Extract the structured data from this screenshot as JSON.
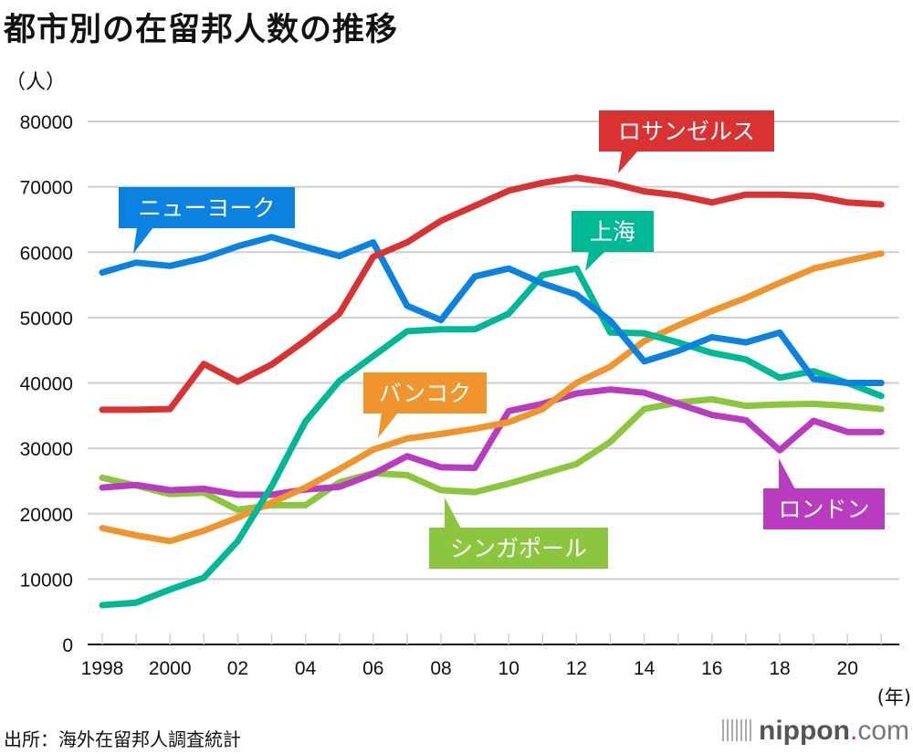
{
  "title": "都市別の在留邦人数の推移",
  "unit_label": "（人）",
  "year_unit": "(年)",
  "source": "出所：海外在留邦人調査統計",
  "logo": {
    "name": "nippon",
    "dot": ".",
    "suffix": "com"
  },
  "chart_data": {
    "type": "line",
    "title": "都市別の在留邦人数の推移",
    "xlabel": "(年)",
    "ylabel": "（人）",
    "ylim": [
      0,
      80000
    ],
    "yticks": [
      0,
      10000,
      20000,
      30000,
      40000,
      50000,
      60000,
      70000,
      80000
    ],
    "ytick_labels": [
      "0",
      "10000",
      "20000",
      "30000",
      "40000",
      "50000",
      "60000",
      "70000",
      "80000"
    ],
    "x": [
      1998,
      1999,
      2000,
      2001,
      2002,
      2003,
      2004,
      2005,
      2006,
      2007,
      2008,
      2009,
      2010,
      2011,
      2012,
      2013,
      2014,
      2015,
      2016,
      2017,
      2018,
      2019,
      2020,
      2021
    ],
    "xtick_years": [
      1998,
      2000,
      2002,
      2004,
      2006,
      2008,
      2010,
      2012,
      2014,
      2016,
      2018,
      2020
    ],
    "xtick_labels": [
      "1998",
      "2000",
      "02",
      "04",
      "06",
      "08",
      "10",
      "12",
      "14",
      "16",
      "18",
      "20"
    ],
    "grid": true,
    "series": [
      {
        "name": "ロサンゼルス",
        "color": "#d93232",
        "label_year": 2013,
        "values": [
          35900,
          35900,
          36000,
          42900,
          40200,
          42800,
          46500,
          50600,
          59300,
          61500,
          64800,
          67100,
          69400,
          70600,
          71400,
          70600,
          69300,
          68700,
          67600,
          68800,
          68800,
          68600,
          67600,
          67300
        ]
      },
      {
        "name": "ニューヨーク",
        "color": "#0c82e0",
        "label_year": 1999,
        "values": [
          56900,
          58400,
          57900,
          59100,
          60900,
          62300,
          60800,
          59400,
          61500,
          51800,
          49600,
          56300,
          57500,
          55200,
          53500,
          49500,
          43300,
          44900,
          47000,
          46200,
          47700,
          40600,
          40000,
          40000
        ]
      },
      {
        "name": "上海",
        "color": "#00b894",
        "label_year": 2012,
        "values": [
          6000,
          6400,
          8400,
          10200,
          15800,
          24200,
          34100,
          40300,
          44100,
          47900,
          48200,
          48200,
          50600,
          56500,
          57500,
          47700,
          47600,
          46200,
          44600,
          43600,
          40800,
          41800,
          40000,
          38000
        ]
      },
      {
        "name": "バンコク",
        "color": "#f0942e",
        "label_year": 2006,
        "values": [
          17800,
          16700,
          15800,
          17400,
          19400,
          21700,
          24000,
          26800,
          29800,
          31500,
          32200,
          33000,
          34000,
          36000,
          40000,
          42500,
          46400,
          48800,
          51000,
          53000,
          55300,
          57500,
          58700,
          59800
        ]
      },
      {
        "name": "ロンドン",
        "color": "#b93bbf",
        "label_year": 2018,
        "values": [
          24000,
          24400,
          23600,
          23800,
          22900,
          22900,
          23700,
          24100,
          26100,
          28800,
          27100,
          27000,
          35700,
          36800,
          38400,
          39000,
          38500,
          36800,
          35100,
          34300,
          29700,
          34200,
          32500,
          32500
        ]
      },
      {
        "name": "シンガポール",
        "color": "#8cc63e",
        "label_year": 2008,
        "values": [
          25500,
          24300,
          23000,
          23200,
          20600,
          21300,
          21300,
          24800,
          26200,
          25900,
          23600,
          23300,
          24600,
          26100,
          27600,
          31000,
          36000,
          37000,
          37500,
          36500,
          36700,
          36800,
          36500,
          36000
        ]
      }
    ]
  }
}
